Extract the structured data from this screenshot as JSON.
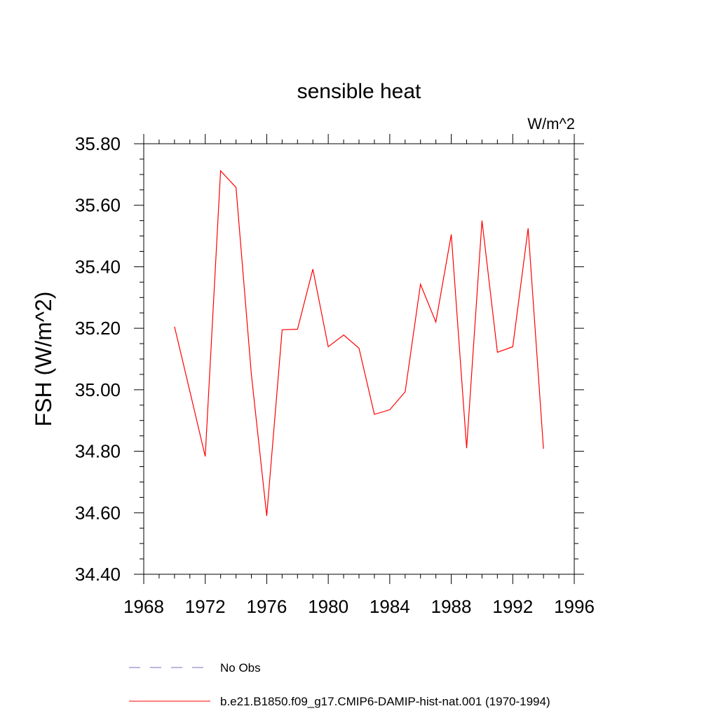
{
  "chart_data": {
    "type": "line",
    "title": "sensible heat",
    "units_label": "W/m^2",
    "ylabel": "FSH  (W/m^2)",
    "xlabel": "",
    "xlim": [
      1968,
      1996
    ],
    "ylim": [
      34.4,
      35.8
    ],
    "x_ticks": [
      1968,
      1972,
      1976,
      1980,
      1984,
      1988,
      1992,
      1996
    ],
    "x_tick_labels": [
      "1968",
      "1972",
      "1976",
      "1980",
      "1984",
      "1988",
      "1992",
      "1996"
    ],
    "y_ticks": [
      34.4,
      34.6,
      34.8,
      35.0,
      35.2,
      35.4,
      35.6,
      35.8
    ],
    "y_tick_labels": [
      "34.40",
      "34.60",
      "34.80",
      "35.00",
      "35.20",
      "35.40",
      "35.60",
      "35.80"
    ],
    "grid": false,
    "legend_placement": "bottom",
    "series": [
      {
        "name": "b.e21.B1850.f09_g17.CMIP6-DAMIP-hist-nat.001 (1970-1994)",
        "color": "#ff0000",
        "style": "solid",
        "x": [
          1970,
          1971,
          1972,
          1973,
          1974,
          1975,
          1976,
          1977,
          1978,
          1979,
          1980,
          1981,
          1982,
          1983,
          1984,
          1985,
          1986,
          1987,
          1988,
          1989,
          1990,
          1991,
          1992,
          1993,
          1994
        ],
        "y": [
          35.205,
          34.995,
          34.783,
          35.712,
          35.658,
          35.05,
          34.59,
          35.195,
          35.197,
          35.392,
          35.14,
          35.178,
          35.135,
          34.92,
          34.935,
          34.993,
          35.343,
          35.22,
          35.505,
          34.81,
          35.55,
          35.122,
          35.14,
          35.525,
          34.808
        ]
      }
    ],
    "legend": [
      {
        "label": "No Obs",
        "color": "#7b6bbf",
        "style": "dashed"
      },
      {
        "label": "b.e21.B1850.f09_g17.CMIP6-DAMIP-hist-nat.001 (1970-1994)",
        "color": "#ff0000",
        "style": "solid"
      }
    ]
  }
}
